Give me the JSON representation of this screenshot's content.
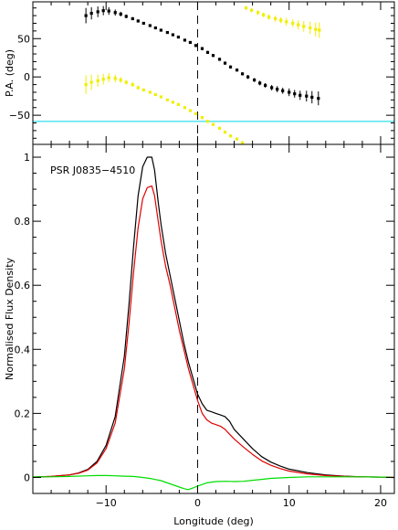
{
  "chart_data": [
    {
      "id": "pa",
      "type": "scatter",
      "ylabel": "P.A. (deg)",
      "xlim": [
        -18,
        21.5
      ],
      "ylim": [
        -88,
        98
      ],
      "yticks": [
        -50,
        0,
        50
      ],
      "ytick_labels": [
        "−50",
        "0",
        "50"
      ],
      "minor_ytick_step": 10,
      "zero_line_x": 0,
      "hline": {
        "y": -58,
        "color": "#00d8e8"
      },
      "series": [
        {
          "color": "#000000",
          "points": [
            {
              "x": -12.2,
              "y": 80,
              "err": 10
            },
            {
              "x": -11.6,
              "y": 83,
              "err": 8
            },
            {
              "x": -10.9,
              "y": 85,
              "err": 7
            },
            {
              "x": -10.3,
              "y": 86.5,
              "err": 6
            },
            {
              "x": -9.7,
              "y": 86,
              "err": 5
            },
            {
              "x": -9.0,
              "y": 84,
              "err": 4
            },
            {
              "x": -8.4,
              "y": 82,
              "err": 3
            },
            {
              "x": -7.8,
              "y": 79,
              "err": 2.5
            },
            {
              "x": -7.1,
              "y": 76,
              "err": 2
            },
            {
              "x": -6.5,
              "y": 73,
              "err": 2
            },
            {
              "x": -5.9,
              "y": 70,
              "err": 1.5
            },
            {
              "x": -5.2,
              "y": 67,
              "err": 1.5
            },
            {
              "x": -4.6,
              "y": 64,
              "err": 1.5
            },
            {
              "x": -4.0,
              "y": 61,
              "err": 1.5
            },
            {
              "x": -3.3,
              "y": 58,
              "err": 1.5
            },
            {
              "x": -2.7,
              "y": 55,
              "err": 1.5
            },
            {
              "x": -2.1,
              "y": 52,
              "err": 1.5
            },
            {
              "x": -1.4,
              "y": 48,
              "err": 1.5
            },
            {
              "x": -0.8,
              "y": 45,
              "err": 1.5
            },
            {
              "x": -0.2,
              "y": 41,
              "err": 1.5
            },
            {
              "x": 0.5,
              "y": 37,
              "err": 2
            },
            {
              "x": 1.1,
              "y": 32,
              "err": 2
            },
            {
              "x": 1.7,
              "y": 28,
              "err": 2
            },
            {
              "x": 2.4,
              "y": 23,
              "err": 2
            },
            {
              "x": 3.0,
              "y": 18,
              "err": 2
            },
            {
              "x": 3.6,
              "y": 13,
              "err": 2
            },
            {
              "x": 4.3,
              "y": 9,
              "err": 2
            },
            {
              "x": 4.9,
              "y": 4,
              "err": 2
            },
            {
              "x": 5.5,
              "y": 0,
              "err": 2.5
            },
            {
              "x": 6.2,
              "y": -4,
              "err": 2.5
            },
            {
              "x": 6.8,
              "y": -8,
              "err": 3
            },
            {
              "x": 7.4,
              "y": -11,
              "err": 3
            },
            {
              "x": 8.1,
              "y": -14,
              "err": 3.5
            },
            {
              "x": 8.7,
              "y": -16,
              "err": 4
            },
            {
              "x": 9.3,
              "y": -18,
              "err": 4
            },
            {
              "x": 10.0,
              "y": -20,
              "err": 5
            },
            {
              "x": 10.6,
              "y": -22,
              "err": 5
            },
            {
              "x": 11.2,
              "y": -24,
              "err": 6
            },
            {
              "x": 11.9,
              "y": -25,
              "err": 7
            },
            {
              "x": 12.5,
              "y": -26.5,
              "err": 8
            },
            {
              "x": 13.2,
              "y": -28,
              "err": 9
            }
          ]
        },
        {
          "color": "#f0ee00",
          "points": [
            {
              "x": -12.2,
              "y": -10,
              "err": 12
            },
            {
              "x": -11.6,
              "y": -7,
              "err": 10
            },
            {
              "x": -10.9,
              "y": -5,
              "err": 8
            },
            {
              "x": -10.3,
              "y": -3,
              "err": 7
            },
            {
              "x": -9.7,
              "y": -1,
              "err": 6
            },
            {
              "x": -9.0,
              "y": -2,
              "err": 5
            },
            {
              "x": -8.4,
              "y": -4,
              "err": 4
            },
            {
              "x": -7.8,
              "y": -7,
              "err": 3
            },
            {
              "x": -7.1,
              "y": -10,
              "err": 3
            },
            {
              "x": -6.5,
              "y": -14,
              "err": 2.5
            },
            {
              "x": -5.9,
              "y": -17,
              "err": 2
            },
            {
              "x": -5.2,
              "y": -20,
              "err": 2
            },
            {
              "x": -4.6,
              "y": -23,
              "err": 1.5
            },
            {
              "x": -4.0,
              "y": -26,
              "err": 1.5
            },
            {
              "x": -3.3,
              "y": -30,
              "err": 1.5
            },
            {
              "x": -2.7,
              "y": -33,
              "err": 1.5
            },
            {
              "x": -2.1,
              "y": -36,
              "err": 1.5
            },
            {
              "x": -1.4,
              "y": -40,
              "err": 1.5
            },
            {
              "x": -0.8,
              "y": -44,
              "err": 1.5
            },
            {
              "x": -0.2,
              "y": -48,
              "err": 1.5
            },
            {
              "x": 0.5,
              "y": -53,
              "err": 2
            },
            {
              "x": 1.1,
              "y": -58,
              "err": 2
            },
            {
              "x": 1.7,
              "y": -62,
              "err": 2
            },
            {
              "x": 2.4,
              "y": -67,
              "err": 2
            },
            {
              "x": 3.0,
              "y": -72,
              "err": 2
            },
            {
              "x": 3.6,
              "y": -77,
              "err": 2
            },
            {
              "x": 4.3,
              "y": -81,
              "err": 2
            },
            {
              "x": 4.9,
              "y": -86,
              "err": 2
            },
            {
              "x": 5.3,
              "y": 90,
              "err": 2.5
            },
            {
              "x": 5.9,
              "y": 87,
              "err": 2.5
            },
            {
              "x": 6.6,
              "y": 84,
              "err": 3
            },
            {
              "x": 7.2,
              "y": 81,
              "err": 3
            },
            {
              "x": 7.8,
              "y": 78,
              "err": 3.5
            },
            {
              "x": 8.5,
              "y": 76,
              "err": 4
            },
            {
              "x": 9.1,
              "y": 74,
              "err": 4
            },
            {
              "x": 9.7,
              "y": 72,
              "err": 5
            },
            {
              "x": 10.4,
              "y": 70,
              "err": 5
            },
            {
              "x": 11.0,
              "y": 68,
              "err": 6
            },
            {
              "x": 11.6,
              "y": 66,
              "err": 7
            },
            {
              "x": 12.3,
              "y": 64,
              "err": 8
            },
            {
              "x": 12.9,
              "y": 62,
              "err": 9
            },
            {
              "x": 13.3,
              "y": 61,
              "err": 10
            }
          ]
        }
      ]
    },
    {
      "id": "profile",
      "type": "line",
      "annotation": "PSR J0835−4510",
      "xlabel": "Longitude (deg)",
      "ylabel": "Normalised Flux Density",
      "xlim": [
        -18,
        21.5
      ],
      "ylim": [
        -0.05,
        1.04
      ],
      "xticks": [
        -10,
        0,
        10,
        20
      ],
      "xtick_labels": [
        "−10",
        "0",
        "10",
        "20"
      ],
      "minor_xtick_step": 2,
      "yticks": [
        0,
        0.2,
        0.4,
        0.6,
        0.8,
        1
      ],
      "ytick_labels": [
        "0",
        "0.2",
        "0.4",
        "0.6",
        "0.8",
        "1"
      ],
      "minor_ytick_step": 0.05,
      "zero_line_x": 0,
      "series": [
        {
          "color": "#000000",
          "x": [
            -18,
            -16,
            -14,
            -13,
            -12,
            -11,
            -10,
            -9,
            -8,
            -7.5,
            -7,
            -6.5,
            -6,
            -5.5,
            -5,
            -4.7,
            -4.3,
            -4,
            -3.5,
            -3,
            -2.5,
            -2,
            -1.5,
            -1,
            -0.5,
            0,
            0.5,
            1,
            1.5,
            2,
            2.5,
            3,
            3.5,
            4,
            5,
            6,
            7,
            8,
            9,
            10,
            12,
            14,
            16,
            18,
            20,
            21.5
          ],
          "y": [
            0.001,
            0.003,
            0.008,
            0.014,
            0.025,
            0.05,
            0.1,
            0.19,
            0.38,
            0.54,
            0.72,
            0.88,
            0.97,
            1.0,
            1.0,
            0.96,
            0.86,
            0.79,
            0.7,
            0.63,
            0.56,
            0.49,
            0.42,
            0.36,
            0.31,
            0.26,
            0.23,
            0.21,
            0.205,
            0.2,
            0.195,
            0.19,
            0.175,
            0.15,
            0.12,
            0.09,
            0.065,
            0.048,
            0.036,
            0.026,
            0.015,
            0.008,
            0.004,
            0.002,
            0.001,
            0.0
          ]
        },
        {
          "color": "#e00000",
          "x": [
            -18,
            -16,
            -14,
            -13,
            -12,
            -11,
            -10,
            -9,
            -8,
            -7.5,
            -7,
            -6.5,
            -6,
            -5.5,
            -5,
            -4.7,
            -4.3,
            -4,
            -3.5,
            -3,
            -2.5,
            -2,
            -1.5,
            -1,
            -0.5,
            0,
            0.5,
            1,
            1.5,
            2,
            2.5,
            3,
            3.5,
            4,
            5,
            6,
            7,
            8,
            9,
            10,
            12,
            14,
            16,
            18,
            20,
            21.5
          ],
          "y": [
            0.001,
            0.003,
            0.008,
            0.013,
            0.023,
            0.045,
            0.09,
            0.17,
            0.34,
            0.48,
            0.64,
            0.78,
            0.87,
            0.905,
            0.91,
            0.88,
            0.8,
            0.74,
            0.66,
            0.6,
            0.53,
            0.46,
            0.4,
            0.34,
            0.29,
            0.24,
            0.2,
            0.18,
            0.17,
            0.165,
            0.16,
            0.15,
            0.135,
            0.12,
            0.095,
            0.072,
            0.052,
            0.038,
            0.028,
            0.02,
            0.011,
            0.006,
            0.003,
            0.002,
            0.001,
            0.0
          ]
        },
        {
          "color": "#00dd00",
          "x": [
            -18,
            -16,
            -14,
            -12,
            -11,
            -10,
            -9,
            -8,
            -7,
            -6,
            -5,
            -4,
            -3,
            -2,
            -1.5,
            -1,
            -0.5,
            0,
            0.5,
            1,
            2,
            3,
            4,
            5,
            6,
            7,
            8,
            10,
            12,
            14,
            16,
            18,
            20,
            21.5
          ],
          "y": [
            0.002,
            0.002,
            0.003,
            0.005,
            0.006,
            0.006,
            0.005,
            0.004,
            0.003,
            0.0,
            -0.004,
            -0.01,
            -0.02,
            -0.03,
            -0.035,
            -0.038,
            -0.033,
            -0.027,
            -0.022,
            -0.017,
            -0.013,
            -0.012,
            -0.013,
            -0.012,
            -0.009,
            -0.006,
            -0.003,
            0.0,
            0.002,
            0.002,
            0.002,
            0.002,
            0.001,
            0.0
          ]
        }
      ]
    }
  ]
}
